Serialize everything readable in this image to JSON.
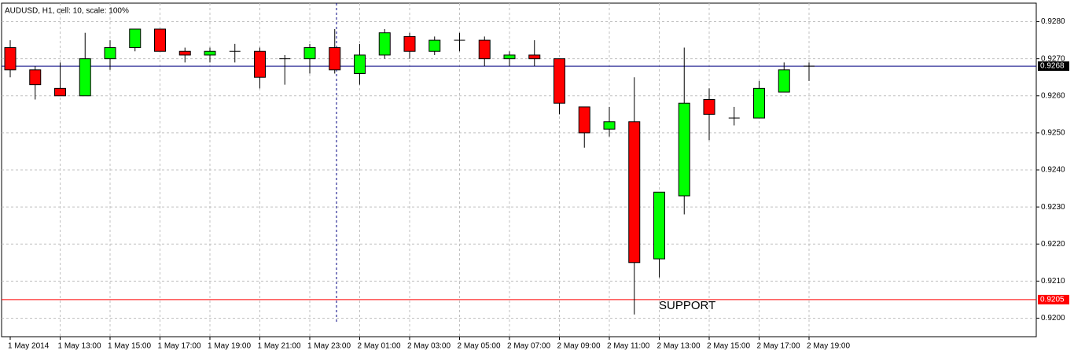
{
  "chart_data": {
    "type": "candlestick",
    "title": "AUDUSD, H1, cell: 10, scale: 100%",
    "categories": [
      "1 May 2014",
      null,
      "1 May 13:00",
      null,
      "1 May 15:00",
      null,
      "1 May 17:00",
      null,
      "1 May 19:00",
      null,
      "1 May 21:00",
      null,
      "1 May 23:00",
      null,
      "2 May 01:00",
      null,
      "2 May 03:00",
      null,
      "2 May 05:00",
      null,
      "2 May 07:00",
      null,
      "2 May 09:00",
      null,
      "2 May 11:00",
      null,
      "2 May 13:00",
      null,
      "2 May 15:00",
      null,
      "2 May 17:00",
      null,
      "2 May 19:00"
    ],
    "open": [
      0.9273,
      0.9267,
      0.9262,
      0.926,
      0.927,
      0.9273,
      0.9278,
      0.9272,
      0.9271,
      0.9272,
      0.9272,
      0.927,
      0.927,
      0.9273,
      0.9266,
      0.9271,
      0.9276,
      0.9272,
      0.9275,
      0.9275,
      0.927,
      0.9271,
      0.927,
      0.9257,
      0.9251,
      0.9253,
      0.9216,
      0.9233,
      0.9259,
      0.9254,
      0.9254,
      0.9261,
      0.9268
    ],
    "high": [
      0.9275,
      0.9268,
      0.9269,
      0.9277,
      0.9275,
      0.9278,
      0.9278,
      0.9273,
      0.9273,
      0.9274,
      0.9273,
      0.9271,
      0.9274,
      0.9278,
      0.9274,
      0.9278,
      0.9277,
      0.9276,
      0.9277,
      0.9276,
      0.9272,
      0.9275,
      0.927,
      0.9257,
      0.9257,
      0.9265,
      0.9234,
      0.9273,
      0.9262,
      0.9257,
      0.9264,
      0.9269,
      0.9269
    ],
    "low": [
      0.9265,
      0.9259,
      0.926,
      0.926,
      0.9267,
      0.9272,
      0.9272,
      0.9269,
      0.9269,
      0.9269,
      0.9262,
      0.9263,
      0.9266,
      0.9266,
      0.9263,
      0.927,
      0.927,
      0.9271,
      0.9272,
      0.9268,
      0.9268,
      0.9268,
      0.9255,
      0.9246,
      0.9249,
      0.9201,
      0.9211,
      0.9228,
      0.9248,
      0.9252,
      0.9254,
      0.9261,
      0.9264
    ],
    "close": [
      0.9267,
      0.9263,
      0.926,
      0.927,
      0.9273,
      0.9278,
      0.9272,
      0.9271,
      0.9272,
      0.9272,
      0.9265,
      0.927,
      0.9273,
      0.9267,
      0.9271,
      0.9277,
      0.9272,
      0.9275,
      0.9275,
      0.927,
      0.9271,
      0.927,
      0.9258,
      0.925,
      0.9253,
      0.9215,
      0.9234,
      0.9258,
      0.9255,
      0.9254,
      0.9262,
      0.9267,
      0.9268
    ],
    "up_color": "#00ff00",
    "down_color": "#ff0000",
    "ylim": [
      0.9195,
      0.9285
    ],
    "yticks": [
      {
        "value": 0.92,
        "label": "0.9200"
      },
      {
        "value": 0.921,
        "label": "0.9210"
      },
      {
        "value": 0.922,
        "label": "0.9220"
      },
      {
        "value": 0.923,
        "label": "0.9230"
      },
      {
        "value": 0.924,
        "label": "0.9240"
      },
      {
        "value": 0.925,
        "label": "0.9250"
      },
      {
        "value": 0.926,
        "label": "0.9260"
      },
      {
        "value": 0.927,
        "label": "0.9270"
      },
      {
        "value": 0.928,
        "label": "0.9280"
      }
    ],
    "grid": true,
    "hlines": [
      {
        "value": 0.9268,
        "color": "#000080",
        "label_bg": "#000000"
      },
      {
        "value": 0.9205,
        "color": "#ff0000",
        "label_bg": "#ff0000",
        "annotation": "SUPPORT"
      }
    ]
  }
}
